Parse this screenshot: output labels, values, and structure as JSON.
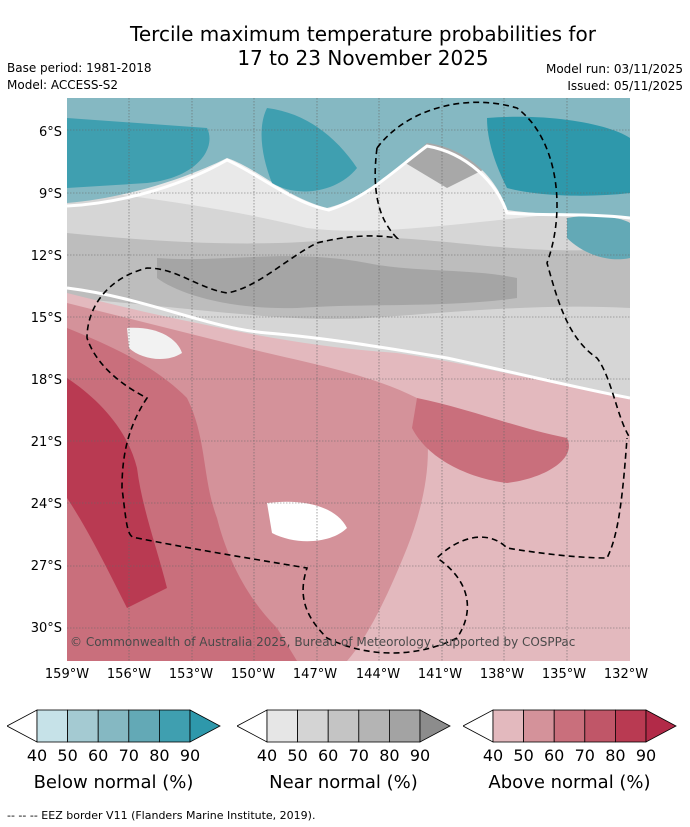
{
  "title": "Tercile maximum temperature probabilities for",
  "title_line2": "17 to 23 November 2025",
  "meta": {
    "base_period": "Base period: 1981-2018",
    "model": "Model: ACCESS-S2",
    "model_run": "Model run: 03/11/2025",
    "issued": "Issued: 05/11/2025"
  },
  "map": {
    "lat_labels": [
      "6°S",
      "9°S",
      "12°S",
      "15°S",
      "18°S",
      "21°S",
      "24°S",
      "27°S",
      "30°S"
    ],
    "lon_labels": [
      "159°W",
      "156°W",
      "153°W",
      "150°W",
      "147°W",
      "144°W",
      "141°W",
      "138°W",
      "135°W",
      "132°W"
    ],
    "copyright": "© Commonwealth of Australia 2025, Bureau of Meteorology, supported by COSPPac"
  },
  "legend": {
    "ticks": [
      "40",
      "50",
      "60",
      "70",
      "80",
      "90"
    ],
    "below": {
      "title": "Below normal (%)",
      "colors": [
        "#ffffff",
        "#c6e2e8",
        "#a4cad2",
        "#85b8c2",
        "#63a9b6",
        "#3f9fb0",
        "#2e98ab"
      ]
    },
    "near": {
      "title": "Near normal (%)",
      "colors": [
        "#ffffff",
        "#e6e6e6",
        "#d4d4d4",
        "#c4c4c4",
        "#b4b4b4",
        "#a3a3a3",
        "#8c8c8c"
      ]
    },
    "above": {
      "title": "Above normal (%)",
      "colors": [
        "#ffffff",
        "#e3b9be",
        "#d4929a",
        "#c96f7c",
        "#c05668",
        "#b93a52",
        "#b22a48"
      ]
    }
  },
  "footnote": "--  --  -- EEZ border V11 (Flanders Marine Institute, 2019)."
}
